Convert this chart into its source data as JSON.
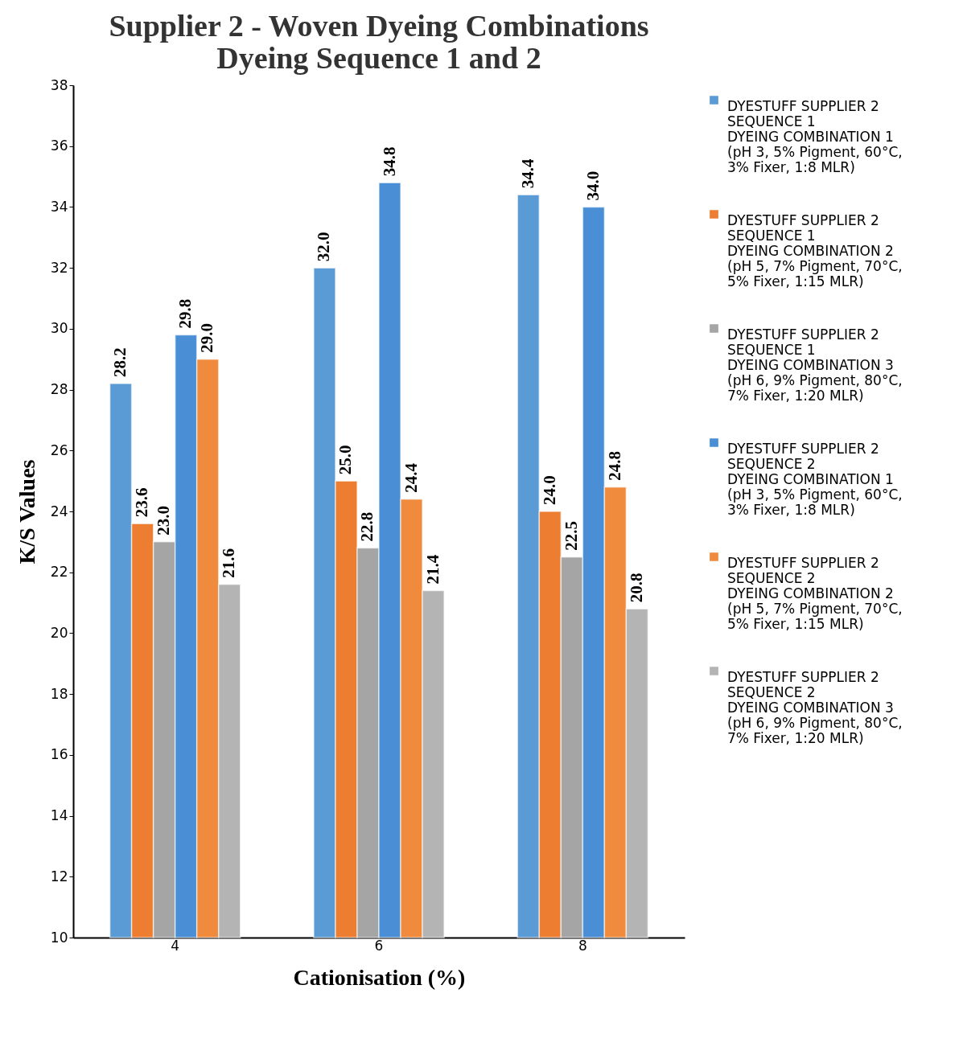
{
  "chart_data": {
    "type": "bar",
    "title": "Supplier 2 - Woven Dyeing Combinations\nDyeing Sequence 1 and 2",
    "xlabel": "Cationisation (%)",
    "ylabel": "K/S Values",
    "categories": [
      "4",
      "6",
      "8"
    ],
    "series": [
      {
        "name": "DYESTUFF SUPPLIER 2\nSEQUENCE 1\nDYEING COMBINATION 1\n(pH 3, 5% Pigment, 60°C,\n3% Fixer, 1:8 MLR)",
        "color": "#5b9bd5",
        "values": [
          28.2,
          32.0,
          34.4
        ]
      },
      {
        "name": "DYESTUFF SUPPLIER 2\nSEQUENCE 1\nDYEING COMBINATION 2\n(pH 5, 7% Pigment, 70°C,\n5% Fixer, 1:15 MLR)",
        "color": "#ed7d31",
        "values": [
          23.6,
          25.0,
          24.0
        ]
      },
      {
        "name": "DYESTUFF SUPPLIER 2\nSEQUENCE 1\nDYEING COMBINATION 3\n(pH 6, 9% Pigment, 80°C,\n7% Fixer, 1:20 MLR)",
        "color": "#a5a5a5",
        "values": [
          23.0,
          22.8,
          22.5
        ]
      },
      {
        "name": "DYESTUFF SUPPLIER 2\nSEQUENCE 2\nDYEING COMBINATION 1\n(pH 3, 5% Pigment, 60°C,\n3% Fixer, 1:8 MLR)",
        "color": "#4a8fd6",
        "values": [
          29.8,
          34.8,
          34.0
        ]
      },
      {
        "name": "DYESTUFF SUPPLIER 2\nSEQUENCE 2\nDYEING COMBINATION 2\n(pH 5, 7% Pigment, 70°C,\n5% Fixer, 1:15 MLR)",
        "color": "#f08a3c",
        "values": [
          29.0,
          24.4,
          24.8
        ]
      },
      {
        "name": "DYESTUFF SUPPLIER 2\nSEQUENCE 2\nDYEING COMBINATION 3\n(pH 6, 9% Pigment, 80°C,\n7% Fixer, 1:20 MLR)",
        "color": "#b4b4b4",
        "values": [
          21.6,
          21.4,
          20.8
        ]
      }
    ],
    "ylim": [
      10,
      38
    ],
    "yticks": [
      10,
      12,
      14,
      16,
      18,
      20,
      22,
      24,
      26,
      28,
      30,
      32,
      34,
      36,
      38
    ],
    "value_labels": [
      [
        "28.2",
        "32.0",
        "34.4"
      ],
      [
        "23.6",
        "25.0",
        "24.0"
      ],
      [
        "23.0",
        "22.8",
        "22.5"
      ],
      [
        "29.8",
        "34.8",
        "34.0"
      ],
      [
        "29.0",
        "24.4",
        "24.8"
      ],
      [
        "21.6",
        "21.4",
        "20.8"
      ]
    ],
    "grid": false,
    "legend": "right"
  }
}
